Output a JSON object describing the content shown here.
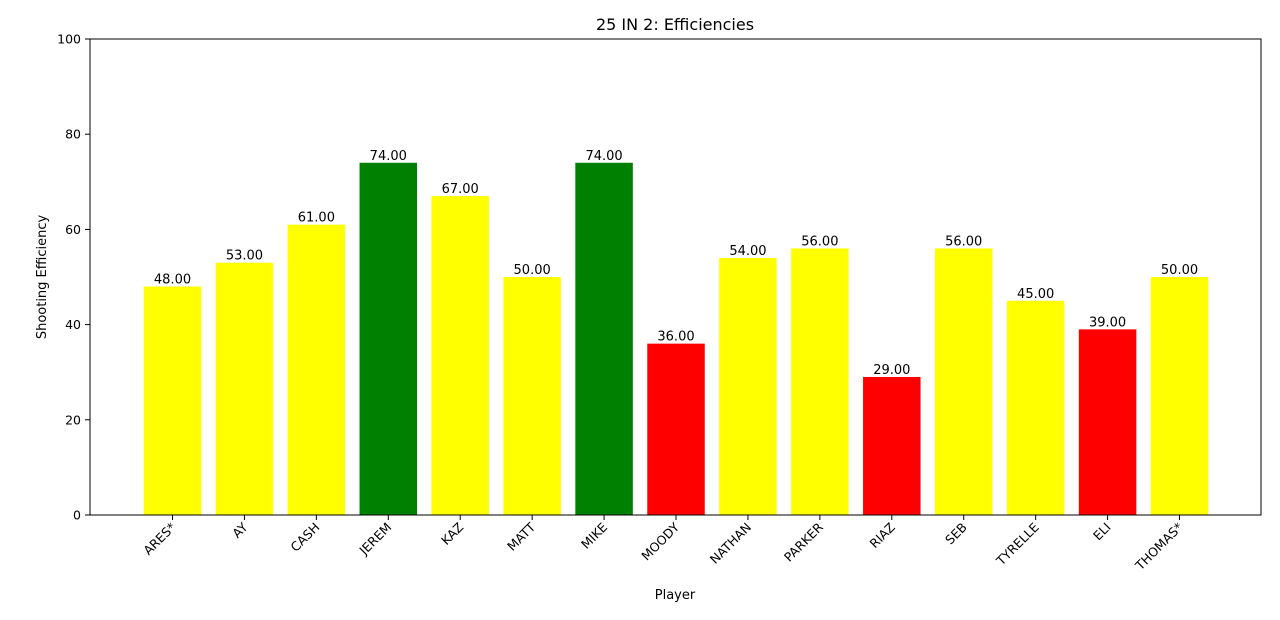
{
  "chart_data": {
    "type": "bar",
    "title": "25 IN 2: Efficiencies",
    "xlabel": "Player",
    "ylabel": "Shooting Efficiency",
    "ylim": [
      0,
      100
    ],
    "yticks": [
      0,
      20,
      40,
      60,
      80,
      100
    ],
    "categories": [
      "ARES*",
      "AY",
      "CASH",
      "JEREM",
      "KAZ",
      "MATT",
      "MIKE",
      "MOODY",
      "NATHAN",
      "PARKER",
      "RIAZ",
      "SEB",
      "TYRELLE",
      "ELI",
      "THOMAS*"
    ],
    "values": [
      48,
      53,
      61,
      74,
      67,
      50,
      74,
      36,
      54,
      56,
      29,
      56,
      45,
      39,
      50
    ],
    "value_labels": [
      "48.00",
      "53.00",
      "61.00",
      "74.00",
      "67.00",
      "50.00",
      "74.00",
      "36.00",
      "54.00",
      "56.00",
      "29.00",
      "56.00",
      "45.00",
      "39.00",
      "50.00"
    ],
    "colors": [
      "#ffff00",
      "#ffff00",
      "#ffff00",
      "#008000",
      "#ffff00",
      "#ffff00",
      "#008000",
      "#ff0000",
      "#ffff00",
      "#ffff00",
      "#ff0000",
      "#ffff00",
      "#ffff00",
      "#ff0000",
      "#ffff00"
    ],
    "grid": false
  }
}
